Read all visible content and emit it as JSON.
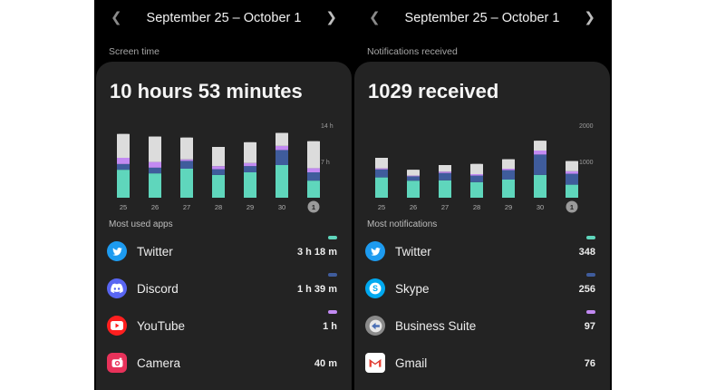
{
  "colors": {
    "teal": "#5fd6bc",
    "blue": "#3f5c9c",
    "purple": "#c28af2",
    "gray": "#dcdcdc",
    "selected_label_bg": "#9a9a9a"
  },
  "left": {
    "header": {
      "date_range": "September 25 – October 1",
      "prev_icon": "chevron-left-icon",
      "next_icon": "chevron-right-icon"
    },
    "section_caption": "Screen time",
    "total": "10 hours 53 minutes",
    "chart_data": {
      "type": "bar",
      "stacked": true,
      "categories": [
        "25",
        "26",
        "27",
        "28",
        "29",
        "30",
        "1"
      ],
      "selected": "1",
      "ylim": [
        0,
        14
      ],
      "yticks": [
        "14 h",
        "7 h"
      ],
      "ytick_values": [
        14,
        7
      ],
      "series": [
        {
          "color": "#5fd6bc",
          "values": [
            5.4,
            4.7,
            5.6,
            4.4,
            4.9,
            6.3,
            3.3
          ]
        },
        {
          "color": "#3f5c9c",
          "values": [
            1.1,
            1.1,
            1.5,
            1.1,
            1.2,
            2.9,
            1.6
          ]
        },
        {
          "color": "#c28af2",
          "values": [
            1.2,
            1.1,
            0.3,
            0.6,
            0.6,
            0.8,
            0.8
          ]
        },
        {
          "color": "#dcdcdc",
          "values": [
            4.6,
            4.9,
            4.2,
            3.7,
            4.0,
            2.5,
            5.2
          ]
        }
      ]
    },
    "list_caption": "Most used apps",
    "apps": [
      {
        "name": "Twitter",
        "value": "3 h 18 m",
        "icon": "twitter-bird-icon",
        "icon_color": "#1d9bf0",
        "bar_color": "#5fd6bc"
      },
      {
        "name": "Discord",
        "value": "1 h 39 m",
        "icon": "discord-icon",
        "icon_color": "#5865f2",
        "bar_color": "#3f5c9c"
      },
      {
        "name": "YouTube",
        "value": "1 h",
        "icon": "youtube-play-icon",
        "icon_color": "#ff1f1f",
        "bar_color": "#c28af2"
      },
      {
        "name": "Camera",
        "value": "40 m",
        "icon": "camera-icon",
        "icon_color": "#e8325a",
        "bar_color": ""
      }
    ]
  },
  "right": {
    "header": {
      "date_range": "September 25 – October 1",
      "prev_icon": "chevron-left-icon",
      "next_icon": "chevron-right-icon"
    },
    "section_caption": "Notifications received",
    "total": "1029 received",
    "chart_data": {
      "type": "bar",
      "stacked": true,
      "categories": [
        "25",
        "26",
        "27",
        "28",
        "29",
        "30",
        "1"
      ],
      "selected": "1",
      "ylim": [
        0,
        2000
      ],
      "yticks": [
        "2000",
        "1000"
      ],
      "ytick_values": [
        2000,
        1000
      ],
      "series": [
        {
          "color": "#5fd6bc",
          "values": [
            560,
            470,
            480,
            430,
            500,
            630,
            360
          ]
        },
        {
          "color": "#3f5c9c",
          "values": [
            220,
            120,
            200,
            180,
            260,
            560,
            300
          ]
        },
        {
          "color": "#c28af2",
          "values": [
            30,
            20,
            40,
            40,
            40,
            110,
            70
          ]
        },
        {
          "color": "#dcdcdc",
          "values": [
            290,
            160,
            180,
            280,
            260,
            270,
            280
          ]
        }
      ]
    },
    "list_caption": "Most notifications",
    "apps": [
      {
        "name": "Twitter",
        "value": "348",
        "icon": "twitter-bird-icon",
        "icon_color": "#1d9bf0",
        "bar_color": "#5fd6bc"
      },
      {
        "name": "Skype",
        "value": "256",
        "icon": "skype-icon",
        "icon_color": "#00a9f0",
        "bar_color": "#3f5c9c"
      },
      {
        "name": "Business Suite",
        "value": "97",
        "icon": "business-suite-icon",
        "icon_color": "#8a8a8a",
        "bar_color": "#c28af2"
      },
      {
        "name": "Gmail",
        "value": "76",
        "icon": "gmail-icon",
        "icon_color": "#ffffff",
        "bar_color": ""
      }
    ]
  }
}
